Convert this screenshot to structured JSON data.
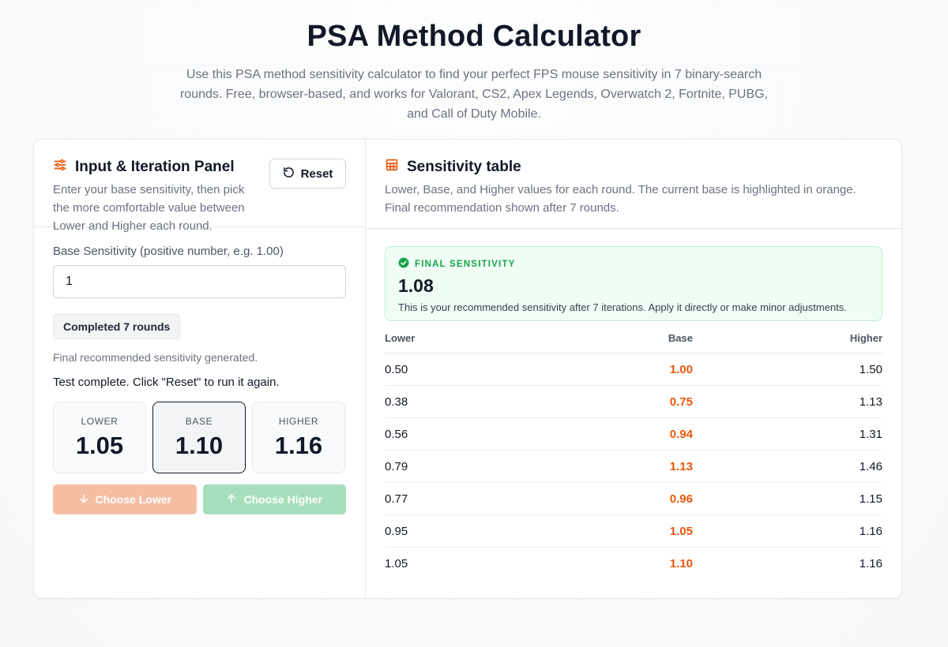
{
  "header": {
    "title": "PSA Method Calculator",
    "subtitle": "Use this PSA method sensitivity calculator to find your perfect FPS mouse sensitivity in 7 binary-search rounds. Free, browser-based, and works for Valorant, CS2, Apex Legends, Overwatch 2, Fortnite, PUBG, and Call of Duty Mobile."
  },
  "input_panel": {
    "title": "Input & Iteration Panel",
    "description": "Enter your base sensitivity, then pick the more comfortable value between Lower and Higher each round.",
    "reset_label": "Reset",
    "base_label": "Base Sensitivity (positive number, e.g. 1.00)",
    "base_value": "1",
    "round_badge": "Completed 7 rounds",
    "status_small": "Final recommended sensitivity generated.",
    "status_main": "Test complete. Click \"Reset\" to run it again.",
    "current": {
      "lower_label": "LOWER",
      "lower_value": "1.05",
      "base_label": "BASE",
      "base_value": "1.10",
      "higher_label": "HIGHER",
      "higher_value": "1.16"
    },
    "choose_lower_label": "Choose Lower",
    "choose_higher_label": "Choose Higher"
  },
  "table_panel": {
    "title": "Sensitivity table",
    "description": "Lower, Base, and Higher values for each round. The current base is highlighted in orange. Final recommendation shown after 7 rounds.",
    "final": {
      "label": "FINAL SENSITIVITY",
      "value": "1.08",
      "description": "This is your recommended sensitivity after 7 iterations. Apply it directly or make minor adjustments."
    },
    "columns": {
      "lower": "Lower",
      "base": "Base",
      "higher": "Higher"
    },
    "rows": [
      {
        "lower": "0.50",
        "base": "1.00",
        "higher": "1.50"
      },
      {
        "lower": "0.38",
        "base": "0.75",
        "higher": "1.13"
      },
      {
        "lower": "0.56",
        "base": "0.94",
        "higher": "1.31"
      },
      {
        "lower": "0.79",
        "base": "1.13",
        "higher": "1.46"
      },
      {
        "lower": "0.77",
        "base": "0.96",
        "higher": "1.15"
      },
      {
        "lower": "0.95",
        "base": "1.05",
        "higher": "1.16"
      },
      {
        "lower": "1.05",
        "base": "1.10",
        "higher": "1.16"
      }
    ]
  },
  "colors": {
    "accent": "#ea580c",
    "success": "#16a34a"
  },
  "icons": {
    "panel": "sliders-icon",
    "reset": "rotate-ccw-icon",
    "table": "table-icon",
    "final": "check-circle-icon",
    "lower": "arrow-down-icon",
    "higher": "arrow-up-icon"
  }
}
